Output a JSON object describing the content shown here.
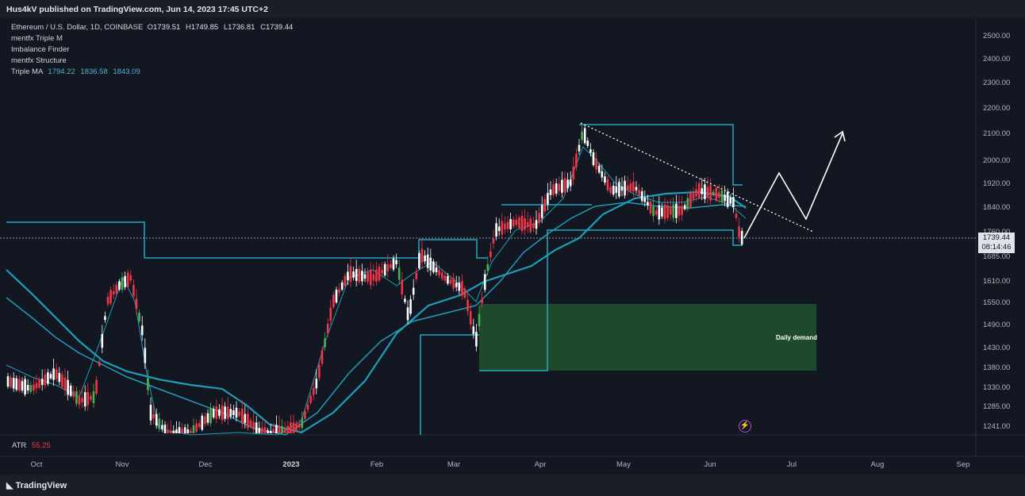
{
  "header": {
    "publish_text": "Hus4kV published on TradingView.com, Jun 14, 2023 17:45 UTC+2"
  },
  "legend": {
    "symbol": "Ethereum / U.S. Dollar, 1D, COINBASE",
    "open_label": "O",
    "open": "1739.51",
    "high_label": "H",
    "high": "1749.85",
    "low_label": "L",
    "low": "1736.81",
    "close_label": "C",
    "close": "1739.44",
    "indicators": [
      "mentfx Triple M",
      "Imbalance Finder",
      "mentfx Structure"
    ],
    "triple_ma_label": "Triple MA",
    "triple_ma_values": [
      "1794.22",
      "1836.58",
      "1843.09"
    ]
  },
  "price_axis": {
    "labels": [
      "2500.00",
      "2400.00",
      "2300.00",
      "2200.00",
      "2100.00",
      "2000.00",
      "1920.00",
      "1840.00",
      "1760.00",
      "1685.00",
      "1610.00",
      "1550.00",
      "1490.00",
      "1430.00",
      "1380.00",
      "1330.00",
      "1285.00",
      "1241.00"
    ],
    "current_price": "1739.44",
    "countdown": "08:14:46"
  },
  "time_axis": {
    "labels": [
      "Oct",
      "Nov",
      "Dec",
      "2023",
      "Feb",
      "Mar",
      "Apr",
      "May",
      "Jun",
      "Jul",
      "Aug",
      "Sep"
    ]
  },
  "atr": {
    "label": "ATR",
    "value": "55.25"
  },
  "annotations": {
    "demand_label": "Daily demand"
  },
  "footer": {
    "logo_text": "TradingView"
  },
  "colors": {
    "up": "#ffffff",
    "down": "#f23645",
    "ma": "#22a9c4",
    "demand_zone": "#1e4d2b",
    "background": "#131722"
  }
}
